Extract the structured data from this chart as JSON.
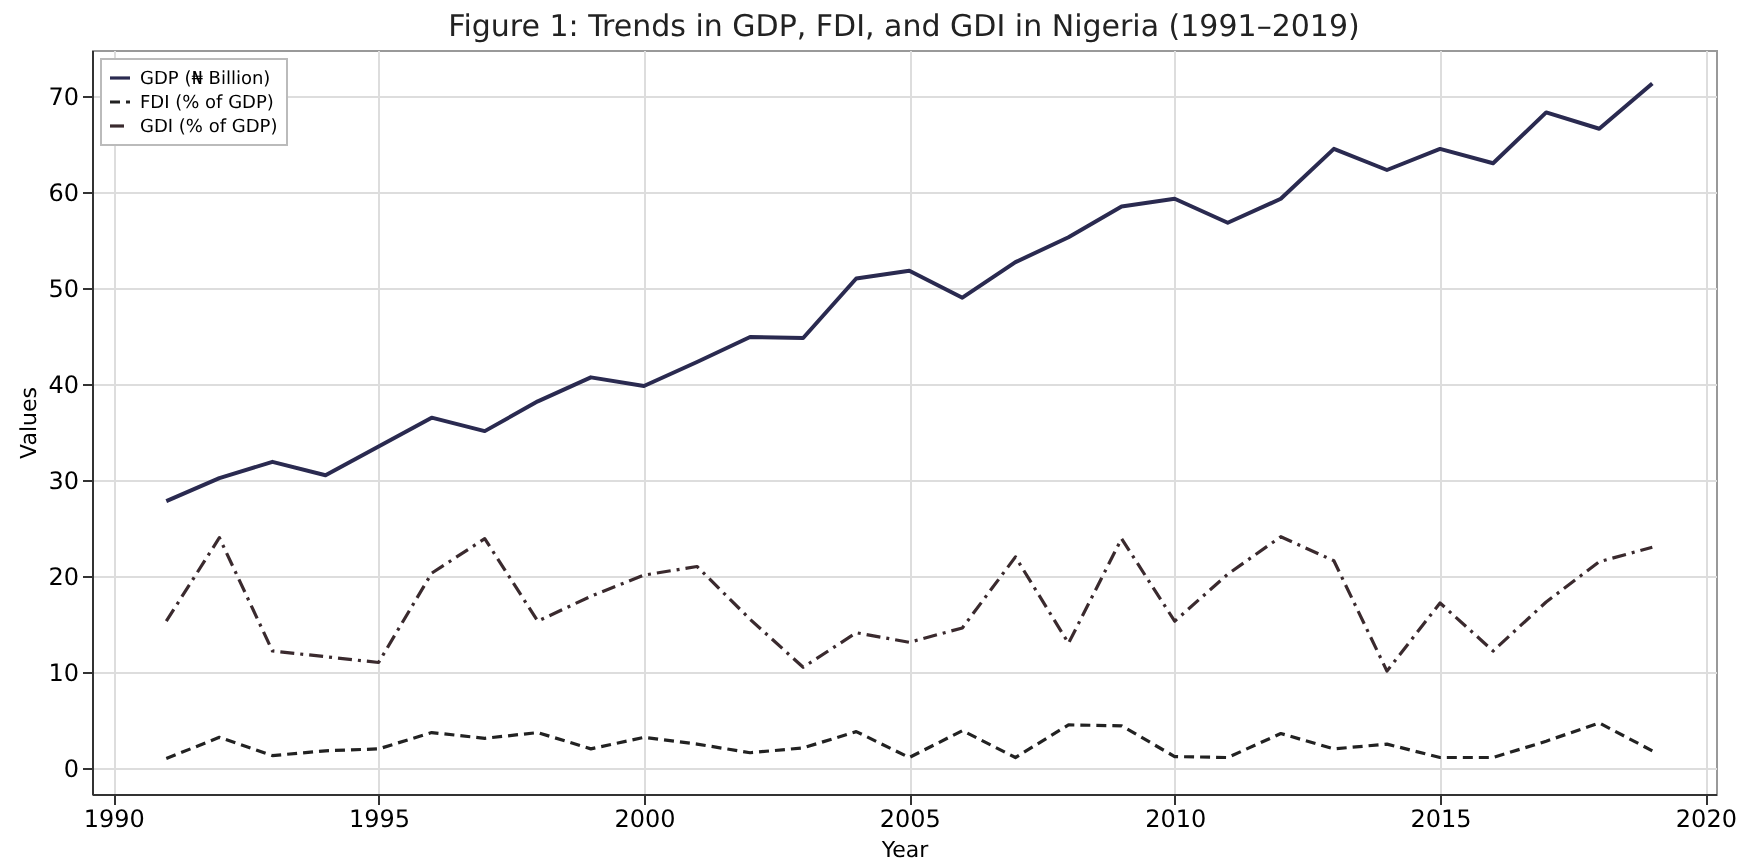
{
  "chart_data": {
    "type": "line",
    "title": "Figure 1: Trends in GDP, FDI, and GDI in Nigeria (1991–2019)",
    "xlabel": "Year",
    "ylabel": "Values",
    "x": [
      1991,
      1992,
      1993,
      1994,
      1995,
      1996,
      1997,
      1998,
      1999,
      2000,
      2001,
      2002,
      2003,
      2004,
      2005,
      2006,
      2007,
      2008,
      2009,
      2010,
      2011,
      2012,
      2013,
      2014,
      2015,
      2016,
      2017,
      2018,
      2019
    ],
    "series": [
      {
        "name": "GDP (₦ Billion)",
        "color": "#2a2a50",
        "line_style": "solid",
        "values": [
          27.8,
          30.2,
          31.9,
          30.5,
          33.5,
          36.5,
          35.1,
          38.2,
          40.7,
          39.8,
          42.3,
          44.9,
          44.8,
          51.0,
          51.8,
          49.0,
          52.7,
          55.3,
          58.5,
          59.3,
          56.8,
          59.3,
          64.5,
          62.3,
          64.5,
          63.0,
          68.3,
          66.6,
          71.3
        ]
      },
      {
        "name": "FDI (% of GDP)",
        "color": "#222222",
        "line_style": "dashed",
        "values": [
          1.0,
          3.2,
          1.3,
          1.8,
          2.0,
          3.7,
          3.1,
          3.7,
          2.0,
          3.2,
          2.5,
          1.6,
          2.1,
          3.8,
          1.1,
          3.9,
          1.1,
          4.5,
          4.4,
          1.2,
          1.1,
          3.6,
          2.0,
          2.5,
          1.1,
          1.1,
          2.8,
          4.7,
          1.8
        ]
      },
      {
        "name": "GDI (% of GDP)",
        "color": "#3a2a2e",
        "line_style": "dashdot",
        "values": [
          15.3,
          24.0,
          12.2,
          11.6,
          11.0,
          20.3,
          23.9,
          15.3,
          17.9,
          20.1,
          21.0,
          15.5,
          10.5,
          14.1,
          13.1,
          14.6,
          22.0,
          13.0,
          23.9,
          15.3,
          20.2,
          24.1,
          21.6,
          10.1,
          17.2,
          12.2,
          17.3,
          21.5,
          23.0
        ]
      }
    ],
    "xlim": [
      1989.6,
      2020.2
    ],
    "xticks": [
      1990,
      1995,
      2000,
      2005,
      2010,
      2015,
      2020
    ],
    "ylim": [
      -2.7,
      74.8
    ],
    "yticks": [
      0,
      10,
      20,
      30,
      40,
      50,
      60,
      70
    ],
    "grid": true,
    "legend": "top left"
  }
}
